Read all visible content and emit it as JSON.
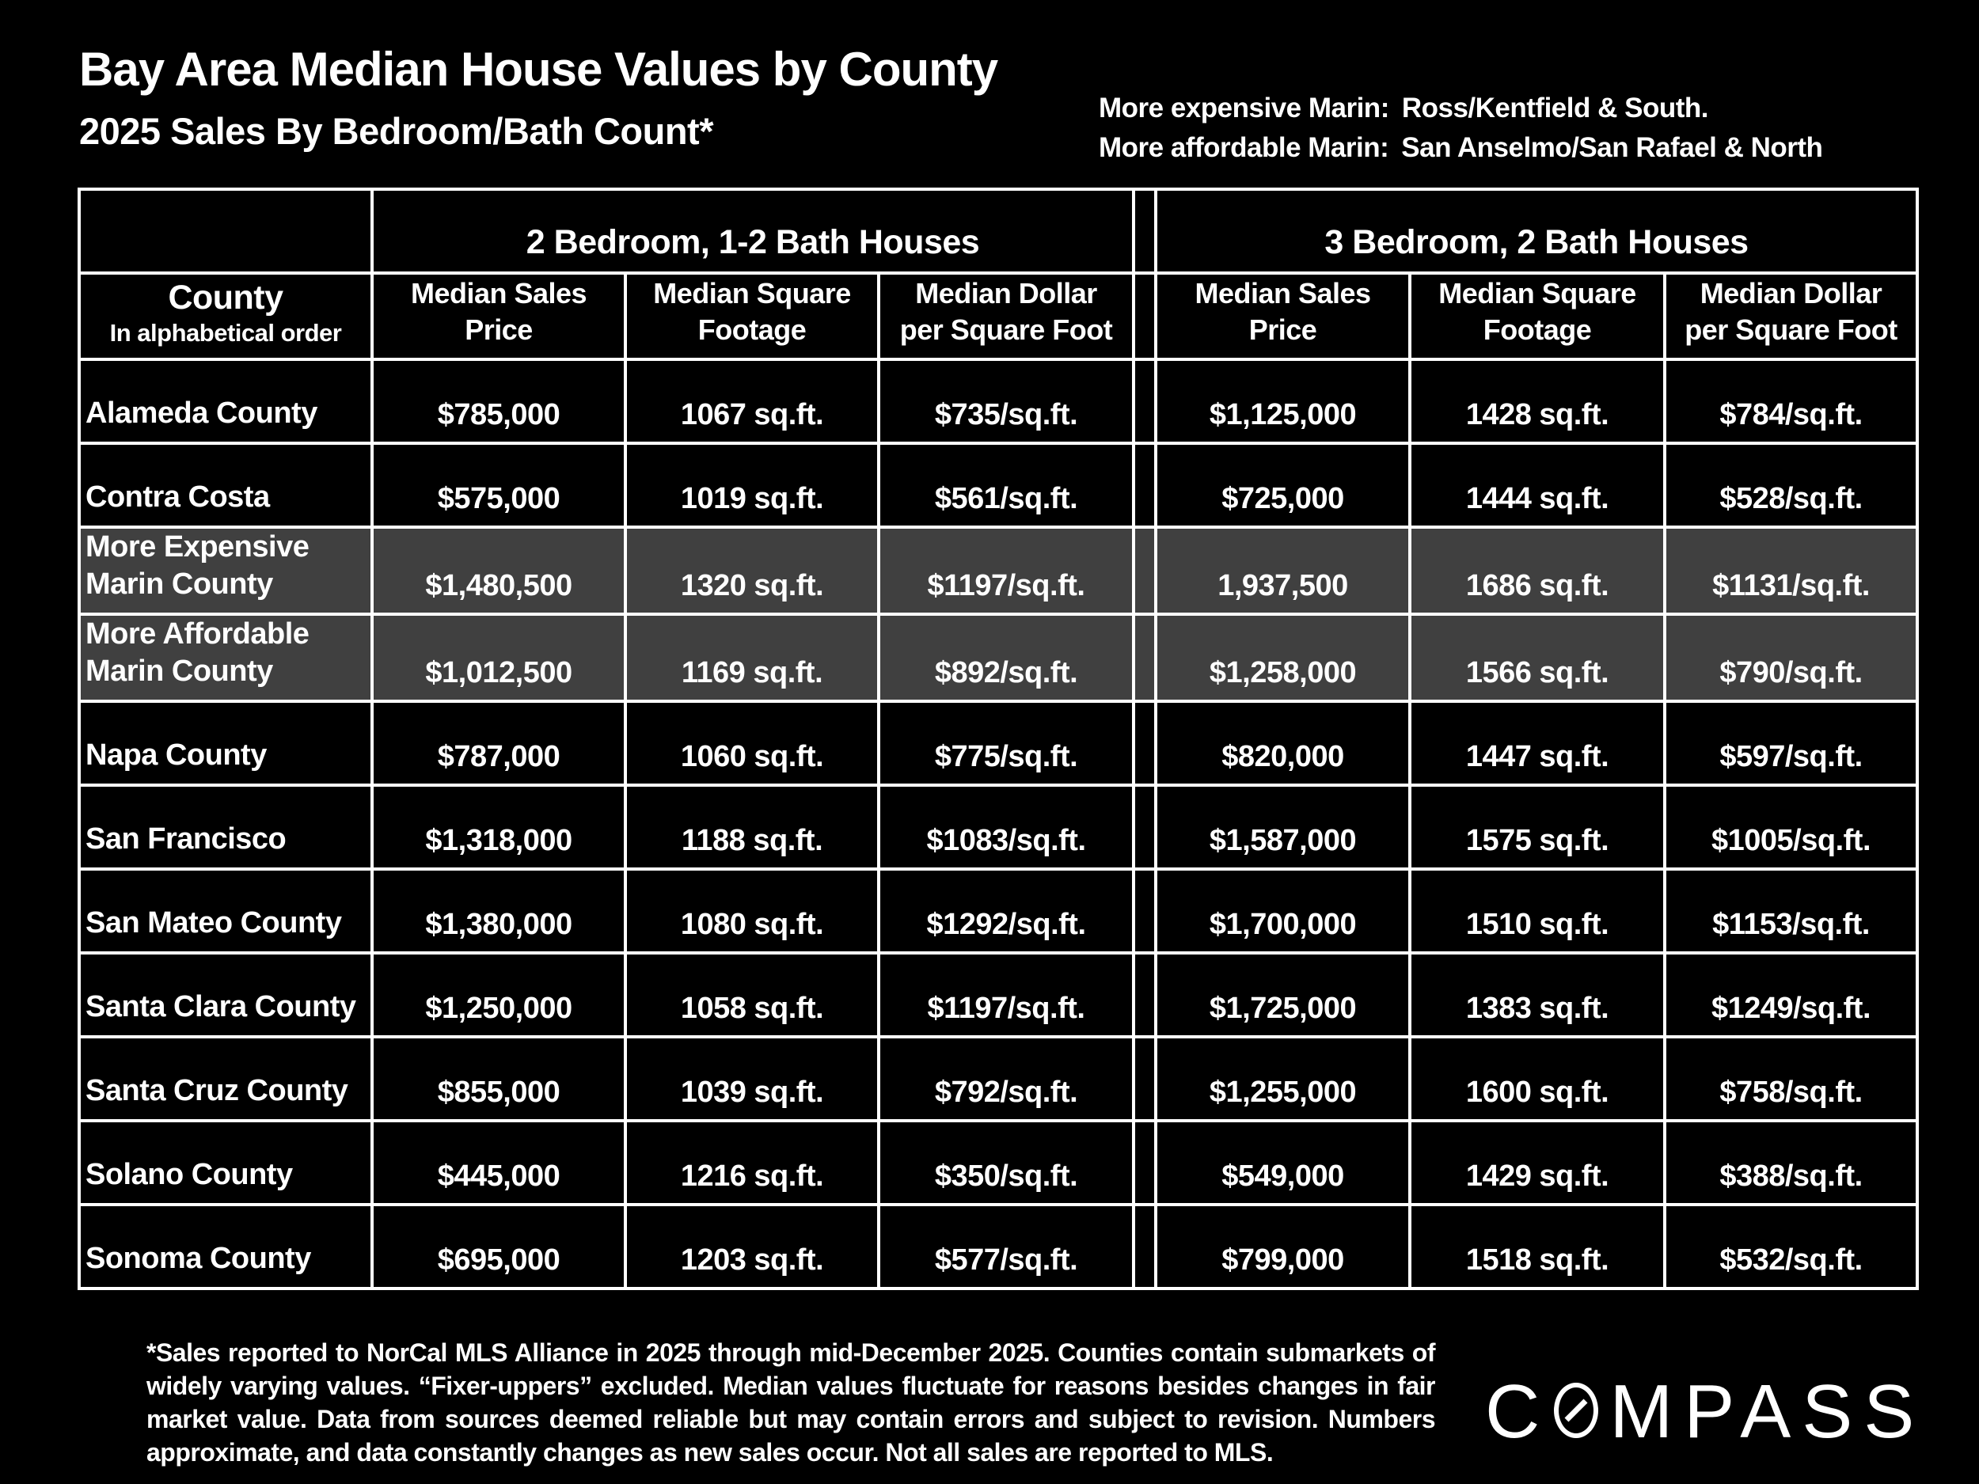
{
  "title": "Bay Area Median House Values by County",
  "subtitle": "2025 Sales By Bedroom/Bath Count*",
  "marin_notes": {
    "expensive_label": "More expensive Marin:",
    "expensive_value": "Ross/Kentfield & South.",
    "affordable_label": "More affordable Marin:",
    "affordable_value": "San Anselmo/San Rafael & North"
  },
  "table": {
    "group_headers": [
      "2 Bedroom, 1-2 Bath Houses",
      "3 Bedroom, 2 Bath Houses"
    ],
    "county_header_title": "County",
    "county_header_subtitle": "In alphabetical order",
    "col_headers": [
      {
        "line1": "Median Sales",
        "line2": "Price"
      },
      {
        "line1": "Median Square",
        "line2": "Footage"
      },
      {
        "line1": "Median Dollar",
        "line2": "per Square Foot"
      },
      {
        "line1": "Median Sales",
        "line2": "Price"
      },
      {
        "line1": "Median Square",
        "line2": "Footage"
      },
      {
        "line1": "Median Dollar",
        "line2": "per Square Foot"
      }
    ],
    "rows": [
      {
        "county": "Alameda County",
        "highlight": false,
        "bed2": [
          "$785,000",
          "1067 sq.ft.",
          "$735/sq.ft."
        ],
        "bed3": [
          "$1,125,000",
          "1428 sq.ft.",
          "$784/sq.ft."
        ]
      },
      {
        "county": "Contra Costa",
        "highlight": false,
        "bed2": [
          "$575,000",
          "1019 sq.ft.",
          "$561/sq.ft."
        ],
        "bed3": [
          "$725,000",
          "1444 sq.ft.",
          "$528/sq.ft."
        ]
      },
      {
        "county": "More Expensive\nMarin County",
        "highlight": true,
        "bed2": [
          "$1,480,500",
          "1320 sq.ft.",
          "$1197/sq.ft."
        ],
        "bed3": [
          "1,937,500",
          "1686 sq.ft.",
          "$1131/sq.ft."
        ]
      },
      {
        "county": "More Affordable\nMarin County",
        "highlight": true,
        "bed2": [
          "$1,012,500",
          "1169 sq.ft.",
          "$892/sq.ft."
        ],
        "bed3": [
          "$1,258,000",
          "1566 sq.ft.",
          "$790/sq.ft."
        ]
      },
      {
        "county": "Napa County",
        "highlight": false,
        "bed2": [
          "$787,000",
          "1060 sq.ft.",
          "$775/sq.ft."
        ],
        "bed3": [
          "$820,000",
          "1447 sq.ft.",
          "$597/sq.ft."
        ]
      },
      {
        "county": "San Francisco",
        "highlight": false,
        "bed2": [
          "$1,318,000",
          "1188 sq.ft.",
          "$1083/sq.ft."
        ],
        "bed3": [
          "$1,587,000",
          "1575 sq.ft.",
          "$1005/sq.ft."
        ]
      },
      {
        "county": "San Mateo County",
        "highlight": false,
        "bed2": [
          "$1,380,000",
          "1080 sq.ft.",
          "$1292/sq.ft."
        ],
        "bed3": [
          "$1,700,000",
          "1510 sq.ft.",
          "$1153/sq.ft."
        ]
      },
      {
        "county": "Santa Clara County",
        "highlight": false,
        "bed2": [
          "$1,250,000",
          "1058 sq.ft.",
          "$1197/sq.ft."
        ],
        "bed3": [
          "$1,725,000",
          "1383 sq.ft.",
          "$1249/sq.ft."
        ]
      },
      {
        "county": "Santa Cruz County",
        "highlight": false,
        "bed2": [
          "$855,000",
          "1039 sq.ft.",
          "$792/sq.ft."
        ],
        "bed3": [
          "$1,255,000",
          "1600 sq.ft.",
          "$758/sq.ft."
        ]
      },
      {
        "county": "Solano County",
        "highlight": false,
        "bed2": [
          "$445,000",
          "1216 sq.ft.",
          "$350/sq.ft."
        ],
        "bed3": [
          "$549,000",
          "1429 sq.ft.",
          "$388/sq.ft."
        ]
      },
      {
        "county": "Sonoma County",
        "highlight": false,
        "bed2": [
          "$695,000",
          "1203 sq.ft.",
          "$577/sq.ft."
        ],
        "bed3": [
          "$799,000",
          "1518 sq.ft.",
          "$532/sq.ft."
        ]
      }
    ]
  },
  "footnote": "*Sales reported to NorCal MLS Alliance in 2025 through mid-December 2025. Counties contain submarkets of widely varying values. “Fixer-uppers” excluded. Median values fluctuate for reasons besides changes in fair market value. Data from sources deemed reliable but may contain errors and subject to revision.  Numbers approximate, and data constantly changes as new sales occur. Not all sales are reported to MLS.",
  "logo": {
    "pre": "C",
    "post": "MPASS"
  },
  "colors": {
    "background": "#000000",
    "text": "#ffffff",
    "grid": "#ffffff",
    "highlight_row": "#404040"
  },
  "chart_data": {
    "type": "table",
    "title": "Bay Area Median House Values by County — 2025 Sales By Bedroom/Bath Count",
    "column_groups": [
      "2 Bedroom, 1-2 Bath Houses",
      "3 Bedroom, 2 Bath Houses"
    ],
    "columns": [
      "County",
      "2bd Median Sales Price ($)",
      "2bd Median Square Footage (sq.ft.)",
      "2bd Median Dollar per Square Foot ($/sq.ft.)",
      "3bd Median Sales Price ($)",
      "3bd Median Square Footage (sq.ft.)",
      "3bd Median Dollar per Square Foot ($/sq.ft.)"
    ],
    "rows": [
      [
        "Alameda County",
        785000,
        1067,
        735,
        1125000,
        1428,
        784
      ],
      [
        "Contra Costa",
        575000,
        1019,
        561,
        725000,
        1444,
        528
      ],
      [
        "More Expensive Marin County",
        1480500,
        1320,
        1197,
        1937500,
        1686,
        1131
      ],
      [
        "More Affordable Marin County",
        1012500,
        1169,
        892,
        1258000,
        1566,
        790
      ],
      [
        "Napa County",
        787000,
        1060,
        775,
        820000,
        1447,
        597
      ],
      [
        "San Francisco",
        1318000,
        1188,
        1083,
        1587000,
        1575,
        1005
      ],
      [
        "San Mateo County",
        1380000,
        1080,
        1292,
        1700000,
        1510,
        1153
      ],
      [
        "Santa Clara County",
        1250000,
        1058,
        1197,
        1725000,
        1383,
        1249
      ],
      [
        "Santa Cruz County",
        855000,
        1039,
        792,
        1255000,
        1600,
        758
      ],
      [
        "Solano County",
        445000,
        1216,
        350,
        549000,
        1429,
        388
      ],
      [
        "Sonoma County",
        695000,
        1203,
        577,
        799000,
        1518,
        532
      ]
    ],
    "highlighted_rows": [
      "More Expensive Marin County",
      "More Affordable Marin County"
    ]
  }
}
